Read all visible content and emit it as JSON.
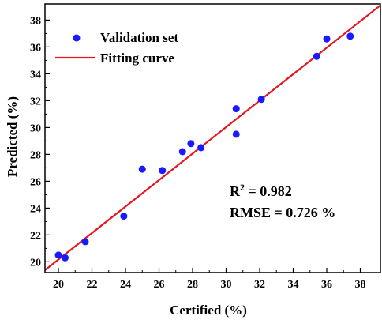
{
  "chart_data": {
    "type": "scatter",
    "xlabel": "Certified (%)",
    "ylabel": "Predicted (%)",
    "xlim": [
      19.2,
      39.2
    ],
    "ylim": [
      19.2,
      39.2
    ],
    "x_ticks": [
      20,
      22,
      24,
      26,
      28,
      30,
      32,
      34,
      36,
      38
    ],
    "y_ticks": [
      20,
      22,
      24,
      26,
      28,
      30,
      32,
      34,
      36,
      38
    ],
    "x_tick_labels": [
      "20",
      "22",
      "24",
      "26",
      "28",
      "30",
      "32",
      "34",
      "36",
      "38"
    ],
    "y_tick_labels": [
      "20",
      "22",
      "24",
      "26",
      "28",
      "30",
      "32",
      "34",
      "36",
      "38"
    ],
    "legend_position": "top-left",
    "grid": false,
    "series": [
      {
        "name": "Validation set",
        "type": "scatter",
        "color": "#1a1aff",
        "points": [
          {
            "x": 20.0,
            "y": 20.5
          },
          {
            "x": 20.4,
            "y": 20.3
          },
          {
            "x": 21.6,
            "y": 21.5
          },
          {
            "x": 23.9,
            "y": 23.4
          },
          {
            "x": 25.0,
            "y": 26.9
          },
          {
            "x": 26.2,
            "y": 26.8
          },
          {
            "x": 27.4,
            "y": 28.2
          },
          {
            "x": 27.9,
            "y": 28.8
          },
          {
            "x": 28.5,
            "y": 28.5
          },
          {
            "x": 30.6,
            "y": 29.5
          },
          {
            "x": 30.6,
            "y": 31.4
          },
          {
            "x": 32.1,
            "y": 32.1
          },
          {
            "x": 35.4,
            "y": 35.3
          },
          {
            "x": 36.0,
            "y": 36.6
          },
          {
            "x": 37.4,
            "y": 36.8
          }
        ]
      },
      {
        "name": "Fitting curve",
        "type": "line",
        "color": "#e8141e",
        "slope": 0.986,
        "intercept": 0.45
      }
    ],
    "annotations": {
      "r2_prefix": "R",
      "r2_sup": "2",
      "r2_value": " = 0.982",
      "rmse": "RMSE = 0.726 %"
    }
  }
}
